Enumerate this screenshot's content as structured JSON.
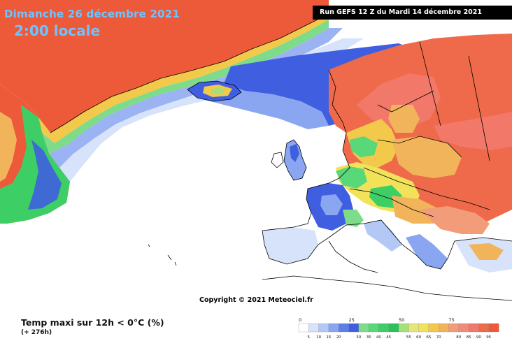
{
  "header": {
    "date": "Dimanche 26 décembre 2021",
    "time": "2:00 locale",
    "run": "Run GEFS 12 Z du Mardi 14 décembre 2021"
  },
  "map": {
    "copyright": "Copyright © 2021 Meteociel.fr"
  },
  "footer": {
    "title": "Temp maxi sur 12h < 0°C (%)",
    "subtitle": "(+ 276h)"
  },
  "legend": {
    "major_ticks": [
      "0",
      "25",
      "50",
      "75"
    ],
    "minor_ticks": [
      "5",
      "10",
      "15",
      "20",
      "30",
      "35",
      "40",
      "45",
      "55",
      "60",
      "65",
      "70",
      "80",
      "85",
      "90",
      "95"
    ],
    "colors": [
      "#ffffff",
      "#d7e3fb",
      "#b4c8f6",
      "#8aa6f0",
      "#5c7ee8",
      "#3f5fe0",
      "#7ddb8a",
      "#58d878",
      "#3dce66",
      "#2bc25a",
      "#a6e07a",
      "#e5e67a",
      "#f2e25a",
      "#f2c94a",
      "#f2b45a",
      "#f29c7a",
      "#f28a7a",
      "#f2786a",
      "#ee6a4a",
      "#ec5a3a"
    ]
  }
}
